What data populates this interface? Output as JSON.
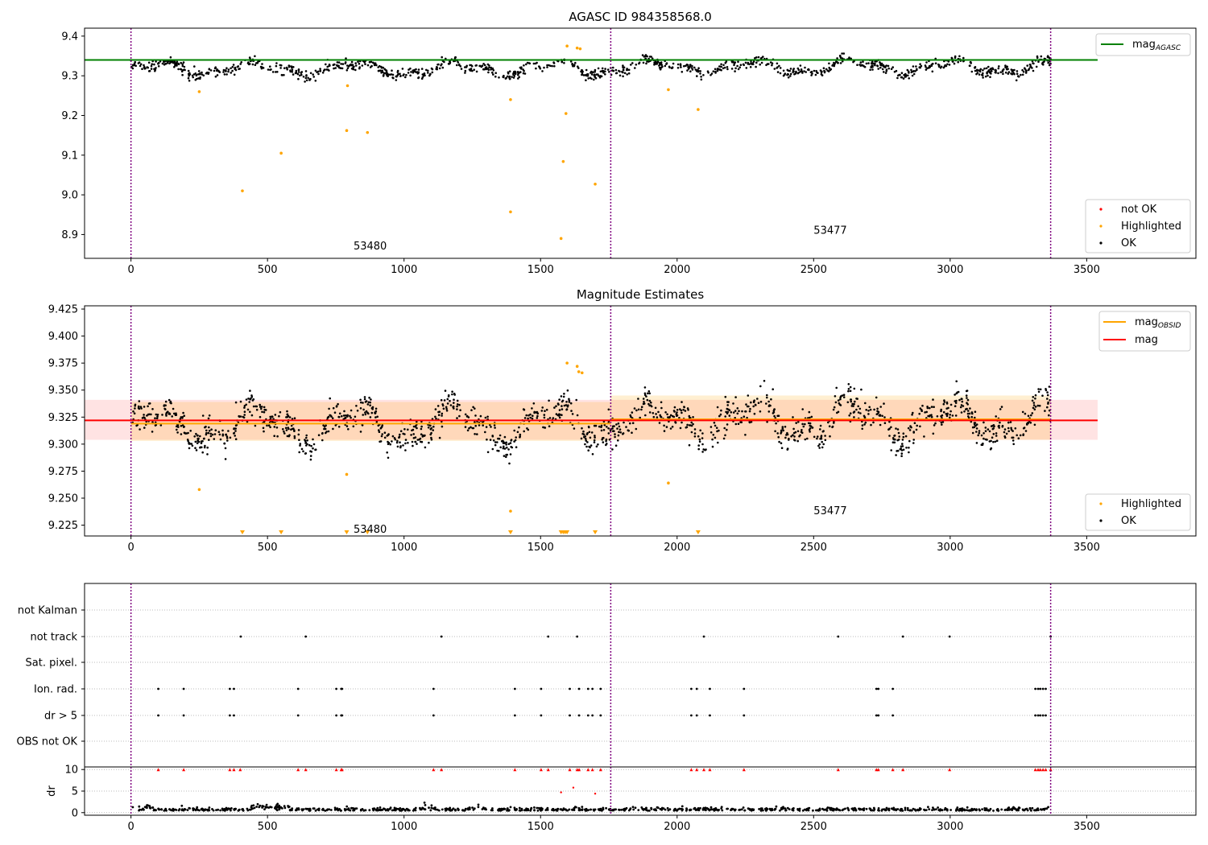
{
  "chart_data": [
    {
      "type": "scatter",
      "title": "AGASC ID 984358568.0",
      "xlim": [
        -170,
        3900
      ],
      "ylim": [
        8.84,
        9.42
      ],
      "xticks": [
        0,
        500,
        1000,
        1500,
        2000,
        2500,
        3000,
        3500
      ],
      "yticks": [
        8.9,
        9.0,
        9.1,
        9.2,
        9.3,
        9.4
      ],
      "ytick_labels": [
        "8.9",
        "9.0",
        "9.1",
        "9.2",
        "9.3",
        "9.4"
      ],
      "vlines": [
        0,
        1757,
        3368
      ],
      "obsid_labels": [
        {
          "x": 815,
          "y": 8.87,
          "text": "53480"
        },
        {
          "x": 2500,
          "y": 8.91,
          "text": "53477"
        }
      ],
      "hlines": [
        {
          "y": 9.34,
          "x0": -170,
          "x1": 3540,
          "color": "#008000"
        }
      ],
      "ok_series": {
        "name": "OK",
        "color": "#000000",
        "x_range": [
          0,
          3368
        ],
        "n_points": 1200,
        "mean_segments": [
          {
            "x0": 0,
            "x1": 1757,
            "mean": 9.318
          },
          {
            "x0": 1757,
            "x1": 3368,
            "mean": 9.322
          }
        ],
        "noise": 0.012
      },
      "highlighted": {
        "name": "Highlighted",
        "color": "#ffa500",
        "points": [
          [
            250,
            9.26
          ],
          [
            408,
            9.01
          ],
          [
            550,
            9.105
          ],
          [
            790,
            9.162
          ],
          [
            793,
            9.275
          ],
          [
            866,
            9.157
          ],
          [
            1390,
            9.24
          ],
          [
            1390,
            8.957
          ],
          [
            1575,
            8.89
          ],
          [
            1583,
            9.084
          ],
          [
            1593,
            9.205
          ],
          [
            1597,
            9.375
          ],
          [
            1634,
            9.37
          ],
          [
            1645,
            9.368
          ],
          [
            1700,
            9.027
          ],
          [
            1968,
            9.265
          ],
          [
            2077,
            9.215
          ]
        ]
      },
      "legend_upper": [
        {
          "label": "mag",
          "sub": "AGASC",
          "color": "#008000",
          "kind": "line"
        }
      ],
      "legend_lower": [
        {
          "label": "not OK",
          "color": "#ff0000",
          "kind": "dot"
        },
        {
          "label": "Highlighted",
          "color": "#ffa500",
          "kind": "dot"
        },
        {
          "label": "OK",
          "color": "#000000",
          "kind": "dot"
        }
      ]
    },
    {
      "type": "scatter",
      "title": "Magnitude Estimates",
      "xlim": [
        -170,
        3900
      ],
      "ylim": [
        9.215,
        9.428
      ],
      "xticks": [
        0,
        500,
        1000,
        1500,
        2000,
        2500,
        3000,
        3500
      ],
      "yticks": [
        9.225,
        9.25,
        9.275,
        9.3,
        9.325,
        9.35,
        9.375,
        9.4,
        9.425
      ],
      "ytick_labels": [
        "9.225",
        "9.250",
        "9.275",
        "9.300",
        "9.325",
        "9.350",
        "9.375",
        "9.400",
        "9.425"
      ],
      "vlines": [
        0,
        1757,
        3368
      ],
      "obsid_labels": [
        {
          "x": 815,
          "y": 9.221,
          "text": "53480"
        },
        {
          "x": 2500,
          "y": 9.238,
          "text": "53477"
        }
      ],
      "mag_band": {
        "mean": 9.322,
        "low": 9.304,
        "high": 9.341,
        "x0": -170,
        "x1": 3540,
        "color": "#ffcccc"
      },
      "obsid_segments": [
        {
          "x0": 0,
          "x1": 1757,
          "mean": 9.319,
          "low": 9.303,
          "high": 9.339
        },
        {
          "x0": 1757,
          "x1": 3368,
          "mean": 9.323,
          "low": 9.304,
          "high": 9.345
        }
      ],
      "ok_series": {
        "name": "OK",
        "color": "#000000",
        "x_range": [
          0,
          3368
        ],
        "n_points": 1500,
        "mean_segments": [
          {
            "x0": 0,
            "x1": 1757,
            "mean": 9.318
          },
          {
            "x0": 1757,
            "x1": 3368,
            "mean": 9.322
          }
        ],
        "noise": 0.013
      },
      "highlighted": {
        "name": "Highlighted",
        "color": "#ffa500",
        "points": [
          [
            250,
            9.258
          ],
          [
            790,
            9.272
          ],
          [
            1390,
            9.238
          ],
          [
            1597,
            9.375
          ],
          [
            1634,
            9.372
          ],
          [
            1640,
            9.367
          ],
          [
            1652,
            9.366
          ],
          [
            1968,
            9.264
          ]
        ]
      },
      "out_of_range_x": [
        408,
        550,
        790,
        866,
        1390,
        1575,
        1583,
        1590,
        1597,
        1700,
        2077
      ],
      "legend_upper": [
        {
          "label": "mag",
          "sub": "OBSID",
          "color": "#ffa500",
          "kind": "line"
        },
        {
          "label": "mag",
          "sub": "",
          "color": "#ff0000",
          "kind": "line"
        }
      ],
      "legend_lower": [
        {
          "label": "Highlighted",
          "color": "#ffa500",
          "kind": "dot"
        },
        {
          "label": "OK",
          "color": "#000000",
          "kind": "dot"
        }
      ]
    },
    {
      "type": "flags",
      "xlim": [
        -170,
        3900
      ],
      "categories": [
        "not Kalman",
        "not track",
        "Sat. pixel.",
        "Ion. rad.",
        "dr > 5",
        "OBS not OK"
      ],
      "flag_x": {
        "not Kalman": [],
        "not track": [
          402,
          640,
          1137,
          1528,
          1634,
          2098,
          2590,
          2827,
          2998,
          3368
        ],
        "Sat. pixel.": [],
        "Ion. rad.": [
          100,
          193,
          362,
          377,
          612,
          752,
          770,
          773,
          1108,
          1406,
          1502,
          1607,
          1641,
          1674,
          1690,
          1720,
          2052,
          2072,
          2120,
          2245,
          2730,
          2737,
          2790,
          3312,
          3322,
          3330,
          3340,
          3350
        ],
        "dr > 5": [
          100,
          193,
          362,
          377,
          612,
          752,
          770,
          773,
          1108,
          1406,
          1502,
          1607,
          1641,
          1674,
          1690,
          1720,
          2052,
          2072,
          2120,
          2245,
          2730,
          2737,
          2790,
          3312,
          3322,
          3330,
          3340,
          3350
        ],
        "OBS not OK": []
      },
      "vlines": [
        0,
        1757,
        3368
      ]
    },
    {
      "type": "scatter",
      "ylabel": "dr",
      "xlim": [
        -170,
        3900
      ],
      "ylim": [
        -0.6,
        10.6
      ],
      "xticks": [
        0,
        500,
        1000,
        1500,
        2000,
        2500,
        3000,
        3500
      ],
      "yticks": [
        0,
        5,
        10
      ],
      "ytick_labels": [
        "0",
        "5",
        "10"
      ],
      "clipped_at": 10,
      "clipped_x": [
        100,
        193,
        362,
        377,
        400,
        612,
        640,
        752,
        770,
        773,
        1108,
        1137,
        1406,
        1502,
        1528,
        1607,
        1634,
        1641,
        1674,
        1690,
        1720,
        2052,
        2072,
        2098,
        2120,
        2245,
        2590,
        2730,
        2737,
        2790,
        2827,
        2998,
        3312,
        3322,
        3330,
        3340,
        3350,
        3368
      ],
      "red_points": [
        [
          1575,
          4.7
        ],
        [
          1620,
          5.8
        ],
        [
          1700,
          4.4
        ]
      ],
      "vlines": [
        0,
        1757,
        3368
      ]
    }
  ],
  "colors": {
    "ok": "#000000",
    "highlight": "#ffa500",
    "not_ok": "#ff0000",
    "agasc": "#008000",
    "vline": "#800080"
  }
}
